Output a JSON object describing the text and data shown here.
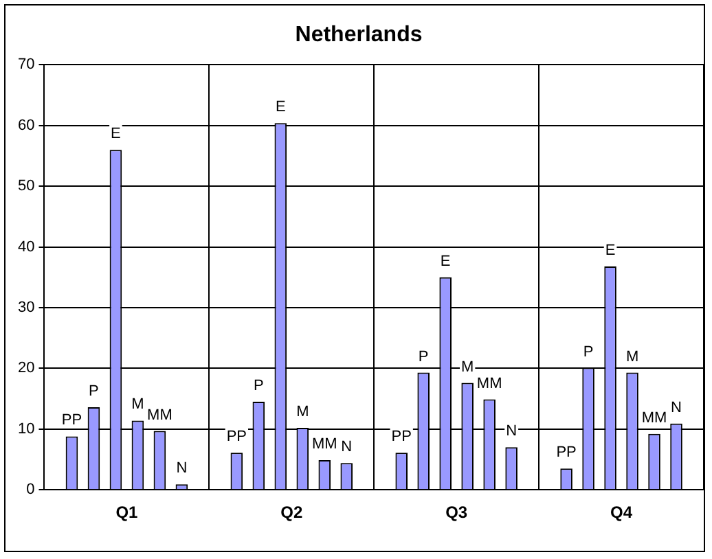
{
  "chart_data": {
    "type": "bar",
    "title": "Netherlands",
    "categories": [
      "Q1",
      "Q2",
      "Q3",
      "Q4"
    ],
    "series": [
      {
        "name": "PP",
        "color": "#9999ff",
        "values": [
          8.8,
          6.1,
          6.1,
          3.5
        ]
      },
      {
        "name": "P",
        "color": "#9999ff",
        "values": [
          13.6,
          14.5,
          19.3,
          20.1
        ]
      },
      {
        "name": "E",
        "color": "#9999ff",
        "values": [
          56,
          60.4,
          35,
          36.8
        ]
      },
      {
        "name": "M",
        "color": "#9999ff",
        "values": [
          11.4,
          10.2,
          17.6,
          19.3
        ]
      },
      {
        "name": "MM",
        "color": "#9999ff",
        "values": [
          9.7,
          4.9,
          14.9,
          9.2
        ]
      },
      {
        "name": "N",
        "color": "#9999ff",
        "values": [
          0.9,
          4.4,
          7,
          10.9
        ]
      }
    ],
    "ylim": [
      0,
      70
    ],
    "yticks": [
      0,
      10,
      20,
      30,
      40,
      50,
      60,
      70
    ],
    "grid": true,
    "legend": false
  }
}
